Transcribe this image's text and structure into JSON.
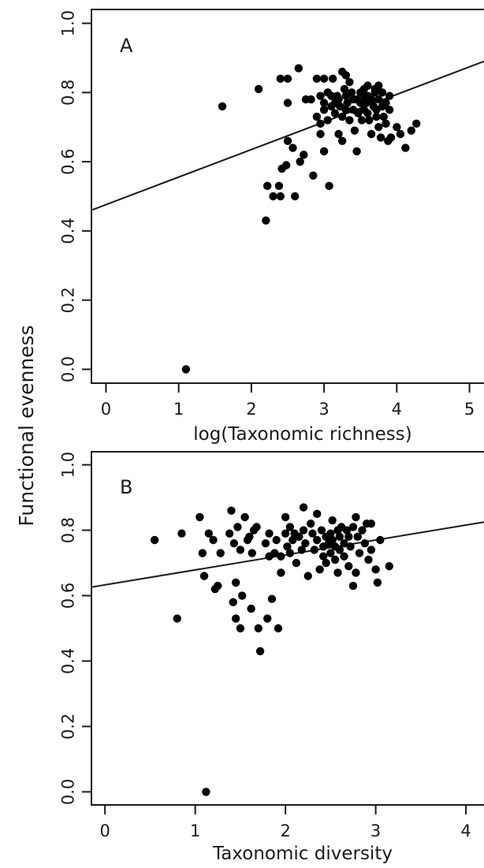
{
  "figure": {
    "shared_ylabel": "Functional evenness"
  },
  "chart_data": [
    {
      "type": "scatter",
      "panel_label": "A",
      "xlabel": "log(Taxonomic richness)",
      "ylabel": "Functional evenness",
      "xlim": [
        -0.2,
        5.2
      ],
      "ylim": [
        -0.04,
        1.04
      ],
      "xticks": [
        "0",
        "1",
        "2",
        "3",
        "4",
        "5"
      ],
      "yticks": [
        "0.0",
        "0.2",
        "0.4",
        "0.6",
        "0.8",
        "1.0"
      ],
      "fit_line": {
        "x": [
          -0.2,
          5.2
        ],
        "y": [
          0.46,
          0.89
        ]
      },
      "points": [
        {
          "x": 1.1,
          "y": 0.0
        },
        {
          "x": 1.6,
          "y": 0.76
        },
        {
          "x": 2.1,
          "y": 0.81
        },
        {
          "x": 2.2,
          "y": 0.43
        },
        {
          "x": 2.22,
          "y": 0.53
        },
        {
          "x": 2.3,
          "y": 0.5
        },
        {
          "x": 2.38,
          "y": 0.53
        },
        {
          "x": 2.4,
          "y": 0.5
        },
        {
          "x": 2.42,
          "y": 0.58
        },
        {
          "x": 2.4,
          "y": 0.84
        },
        {
          "x": 2.5,
          "y": 0.84
        },
        {
          "x": 2.5,
          "y": 0.66
        },
        {
          "x": 2.48,
          "y": 0.59
        },
        {
          "x": 2.5,
          "y": 0.77
        },
        {
          "x": 2.57,
          "y": 0.64
        },
        {
          "x": 2.6,
          "y": 0.5
        },
        {
          "x": 2.65,
          "y": 0.87
        },
        {
          "x": 2.67,
          "y": 0.6
        },
        {
          "x": 2.72,
          "y": 0.62
        },
        {
          "x": 2.75,
          "y": 0.78
        },
        {
          "x": 2.82,
          "y": 0.78
        },
        {
          "x": 2.85,
          "y": 0.56
        },
        {
          "x": 2.9,
          "y": 0.84
        },
        {
          "x": 2.9,
          "y": 0.73
        },
        {
          "x": 2.95,
          "y": 0.79
        },
        {
          "x": 2.95,
          "y": 0.71
        },
        {
          "x": 2.95,
          "y": 0.68
        },
        {
          "x": 3.0,
          "y": 0.63
        },
        {
          "x": 3.0,
          "y": 0.84
        },
        {
          "x": 3.0,
          "y": 0.77
        },
        {
          "x": 3.0,
          "y": 0.75
        },
        {
          "x": 3.05,
          "y": 0.8
        },
        {
          "x": 3.05,
          "y": 0.72
        },
        {
          "x": 3.07,
          "y": 0.53
        },
        {
          "x": 3.1,
          "y": 0.79
        },
        {
          "x": 3.1,
          "y": 0.76
        },
        {
          "x": 3.12,
          "y": 0.84
        },
        {
          "x": 3.15,
          "y": 0.77
        },
        {
          "x": 3.15,
          "y": 0.74
        },
        {
          "x": 3.18,
          "y": 0.79
        },
        {
          "x": 3.2,
          "y": 0.78
        },
        {
          "x": 3.2,
          "y": 0.68
        },
        {
          "x": 3.22,
          "y": 0.76
        },
        {
          "x": 3.25,
          "y": 0.86
        },
        {
          "x": 3.25,
          "y": 0.73
        },
        {
          "x": 3.25,
          "y": 0.66
        },
        {
          "x": 3.28,
          "y": 0.81
        },
        {
          "x": 3.3,
          "y": 0.79
        },
        {
          "x": 3.3,
          "y": 0.85
        },
        {
          "x": 3.3,
          "y": 0.75
        },
        {
          "x": 3.32,
          "y": 0.77
        },
        {
          "x": 3.35,
          "y": 0.83
        },
        {
          "x": 3.35,
          "y": 0.72
        },
        {
          "x": 3.38,
          "y": 0.8
        },
        {
          "x": 3.4,
          "y": 0.78
        },
        {
          "x": 3.4,
          "y": 0.75
        },
        {
          "x": 3.42,
          "y": 0.69
        },
        {
          "x": 3.45,
          "y": 0.63
        },
        {
          "x": 3.45,
          "y": 0.78
        },
        {
          "x": 3.47,
          "y": 0.74
        },
        {
          "x": 3.5,
          "y": 0.8
        },
        {
          "x": 3.5,
          "y": 0.77
        },
        {
          "x": 3.52,
          "y": 0.72
        },
        {
          "x": 3.55,
          "y": 0.81
        },
        {
          "x": 3.55,
          "y": 0.79
        },
        {
          "x": 3.55,
          "y": 0.75
        },
        {
          "x": 3.58,
          "y": 0.77
        },
        {
          "x": 3.6,
          "y": 0.82
        },
        {
          "x": 3.6,
          "y": 0.79
        },
        {
          "x": 3.6,
          "y": 0.74
        },
        {
          "x": 3.62,
          "y": 0.72
        },
        {
          "x": 3.65,
          "y": 0.78
        },
        {
          "x": 3.65,
          "y": 0.68
        },
        {
          "x": 3.68,
          "y": 0.76
        },
        {
          "x": 3.7,
          "y": 0.81
        },
        {
          "x": 3.7,
          "y": 0.8
        },
        {
          "x": 3.72,
          "y": 0.75
        },
        {
          "x": 3.72,
          "y": 0.73
        },
        {
          "x": 3.75,
          "y": 0.82
        },
        {
          "x": 3.75,
          "y": 0.78
        },
        {
          "x": 3.75,
          "y": 0.7
        },
        {
          "x": 3.78,
          "y": 0.67
        },
        {
          "x": 3.8,
          "y": 0.8
        },
        {
          "x": 3.8,
          "y": 0.76
        },
        {
          "x": 3.82,
          "y": 0.73
        },
        {
          "x": 3.85,
          "y": 0.77
        },
        {
          "x": 3.85,
          "y": 0.71
        },
        {
          "x": 3.88,
          "y": 0.66
        },
        {
          "x": 3.9,
          "y": 0.75
        },
        {
          "x": 3.92,
          "y": 0.67
        },
        {
          "x": 4.0,
          "y": 0.7
        },
        {
          "x": 4.12,
          "y": 0.64
        },
        {
          "x": 4.2,
          "y": 0.69
        },
        {
          "x": 4.27,
          "y": 0.71
        },
        {
          "x": 4.05,
          "y": 0.68
        },
        {
          "x": 3.9,
          "y": 0.79
        }
      ]
    },
    {
      "type": "scatter",
      "panel_label": "B",
      "xlabel": "Taxonomic diversity",
      "ylabel": "Functional evenness",
      "xlim": [
        -0.15,
        4.2
      ],
      "ylim": [
        -0.04,
        1.04
      ],
      "xticks": [
        "0",
        "1",
        "2",
        "3",
        "4"
      ],
      "yticks": [
        "0.0",
        "0.2",
        "0.4",
        "0.6",
        "0.8",
        "1.0"
      ],
      "fit_line": {
        "x": [
          -0.15,
          4.2
        ],
        "y": [
          0.626,
          0.825
        ]
      },
      "points": [
        {
          "x": 0.55,
          "y": 0.77
        },
        {
          "x": 0.8,
          "y": 0.53
        },
        {
          "x": 0.85,
          "y": 0.79
        },
        {
          "x": 1.05,
          "y": 0.84
        },
        {
          "x": 1.08,
          "y": 0.73
        },
        {
          "x": 1.1,
          "y": 0.66
        },
        {
          "x": 1.12,
          "y": 0.0
        },
        {
          "x": 1.15,
          "y": 0.79
        },
        {
          "x": 1.2,
          "y": 0.77
        },
        {
          "x": 1.22,
          "y": 0.62
        },
        {
          "x": 1.25,
          "y": 0.63
        },
        {
          "x": 1.28,
          "y": 0.73
        },
        {
          "x": 1.38,
          "y": 0.79
        },
        {
          "x": 1.4,
          "y": 0.86
        },
        {
          "x": 1.42,
          "y": 0.58
        },
        {
          "x": 1.43,
          "y": 0.76
        },
        {
          "x": 1.45,
          "y": 0.53
        },
        {
          "x": 1.45,
          "y": 0.64
        },
        {
          "x": 1.47,
          "y": 0.81
        },
        {
          "x": 1.5,
          "y": 0.5
        },
        {
          "x": 1.5,
          "y": 0.74
        },
        {
          "x": 1.52,
          "y": 0.6
        },
        {
          "x": 1.55,
          "y": 0.84
        },
        {
          "x": 1.58,
          "y": 0.77
        },
        {
          "x": 1.6,
          "y": 0.78
        },
        {
          "x": 1.62,
          "y": 0.56
        },
        {
          "x": 1.63,
          "y": 0.73
        },
        {
          "x": 1.65,
          "y": 0.8
        },
        {
          "x": 1.68,
          "y": 0.81
        },
        {
          "x": 1.7,
          "y": 0.5
        },
        {
          "x": 1.72,
          "y": 0.43
        },
        {
          "x": 1.78,
          "y": 0.76
        },
        {
          "x": 1.8,
          "y": 0.53
        },
        {
          "x": 1.82,
          "y": 0.79
        },
        {
          "x": 1.85,
          "y": 0.59
        },
        {
          "x": 1.88,
          "y": 0.73
        },
        {
          "x": 1.9,
          "y": 0.77
        },
        {
          "x": 1.92,
          "y": 0.5
        },
        {
          "x": 1.95,
          "y": 0.67
        },
        {
          "x": 1.95,
          "y": 0.72
        },
        {
          "x": 2.0,
          "y": 0.84
        },
        {
          "x": 2.0,
          "y": 0.79
        },
        {
          "x": 2.02,
          "y": 0.75
        },
        {
          "x": 2.05,
          "y": 0.81
        },
        {
          "x": 2.05,
          "y": 0.73
        },
        {
          "x": 2.08,
          "y": 0.77
        },
        {
          "x": 2.1,
          "y": 0.79
        },
        {
          "x": 2.12,
          "y": 0.7
        },
        {
          "x": 2.15,
          "y": 0.78
        },
        {
          "x": 2.18,
          "y": 0.74
        },
        {
          "x": 2.2,
          "y": 0.87
        },
        {
          "x": 2.2,
          "y": 0.8
        },
        {
          "x": 2.22,
          "y": 0.76
        },
        {
          "x": 2.25,
          "y": 0.66
        },
        {
          "x": 2.28,
          "y": 0.82
        },
        {
          "x": 2.3,
          "y": 0.79
        },
        {
          "x": 2.32,
          "y": 0.74
        },
        {
          "x": 2.35,
          "y": 0.85
        },
        {
          "x": 2.35,
          "y": 0.77
        },
        {
          "x": 2.38,
          "y": 0.68
        },
        {
          "x": 2.4,
          "y": 0.8
        },
        {
          "x": 2.42,
          "y": 0.75
        },
        {
          "x": 2.42,
          "y": 0.72
        },
        {
          "x": 2.45,
          "y": 0.78
        },
        {
          "x": 2.45,
          "y": 0.7
        },
        {
          "x": 2.48,
          "y": 0.76
        },
        {
          "x": 2.5,
          "y": 0.79
        },
        {
          "x": 2.5,
          "y": 0.73
        },
        {
          "x": 2.52,
          "y": 0.83
        },
        {
          "x": 2.52,
          "y": 0.77
        },
        {
          "x": 2.55,
          "y": 0.75
        },
        {
          "x": 2.55,
          "y": 0.71
        },
        {
          "x": 2.58,
          "y": 0.8
        },
        {
          "x": 2.58,
          "y": 0.67
        },
        {
          "x": 2.6,
          "y": 0.78
        },
        {
          "x": 2.6,
          "y": 0.74
        },
        {
          "x": 2.62,
          "y": 0.81
        },
        {
          "x": 2.65,
          "y": 0.76
        },
        {
          "x": 2.65,
          "y": 0.72
        },
        {
          "x": 2.68,
          "y": 0.8
        },
        {
          "x": 2.7,
          "y": 0.78
        },
        {
          "x": 2.7,
          "y": 0.69
        },
        {
          "x": 2.72,
          "y": 0.75
        },
        {
          "x": 2.75,
          "y": 0.63
        },
        {
          "x": 2.75,
          "y": 0.81
        },
        {
          "x": 2.78,
          "y": 0.84
        },
        {
          "x": 2.78,
          "y": 0.67
        },
        {
          "x": 2.8,
          "y": 0.78
        },
        {
          "x": 2.82,
          "y": 0.73
        },
        {
          "x": 2.85,
          "y": 0.8
        },
        {
          "x": 2.88,
          "y": 0.76
        },
        {
          "x": 2.9,
          "y": 0.82
        },
        {
          "x": 2.92,
          "y": 0.71
        },
        {
          "x": 2.95,
          "y": 0.74
        },
        {
          "x": 3.0,
          "y": 0.68
        },
        {
          "x": 3.02,
          "y": 0.64
        },
        {
          "x": 3.05,
          "y": 0.77
        },
        {
          "x": 3.15,
          "y": 0.69
        },
        {
          "x": 2.95,
          "y": 0.82
        },
        {
          "x": 1.82,
          "y": 0.72
        }
      ]
    }
  ]
}
